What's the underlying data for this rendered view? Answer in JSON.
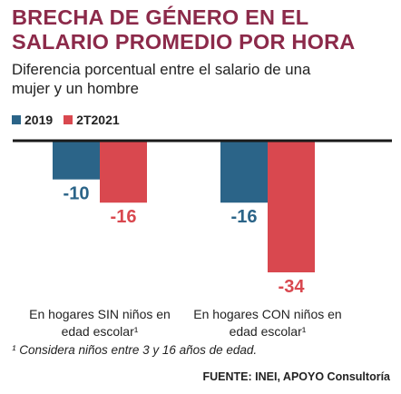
{
  "title_line1": "BRECHA DE GÉNERO EN EL",
  "title_line2": "SALARIO PROMEDIO POR HORA",
  "subtitle_line1": "Diferencia porcentual entre el salario de una",
  "subtitle_line2": "mujer y un hombre",
  "footnote": "¹ Considera niños entre 3 y 16 años de edad.",
  "source": "FUENTE: INEI, APOYO Consultoría",
  "colors": {
    "title": "#8c2a4a",
    "series_2019": "#2b6488",
    "series_2021": "#d9484f"
  },
  "chart_data": {
    "type": "bar",
    "categories": [
      [
        "En hogares SIN niños en",
        "edad escolar¹"
      ],
      [
        "En hogares CON niños en",
        "edad escolar¹"
      ]
    ],
    "series": [
      {
        "name": "2019",
        "values": [
          -10,
          -16
        ],
        "labels": [
          "-10",
          "-16"
        ]
      },
      {
        "name": "2T2021",
        "values": [
          -16,
          -34
        ],
        "labels": [
          "-16",
          "-34"
        ]
      }
    ],
    "ylim": [
      -34,
      0
    ],
    "legend": "top-left",
    "grid": false
  }
}
